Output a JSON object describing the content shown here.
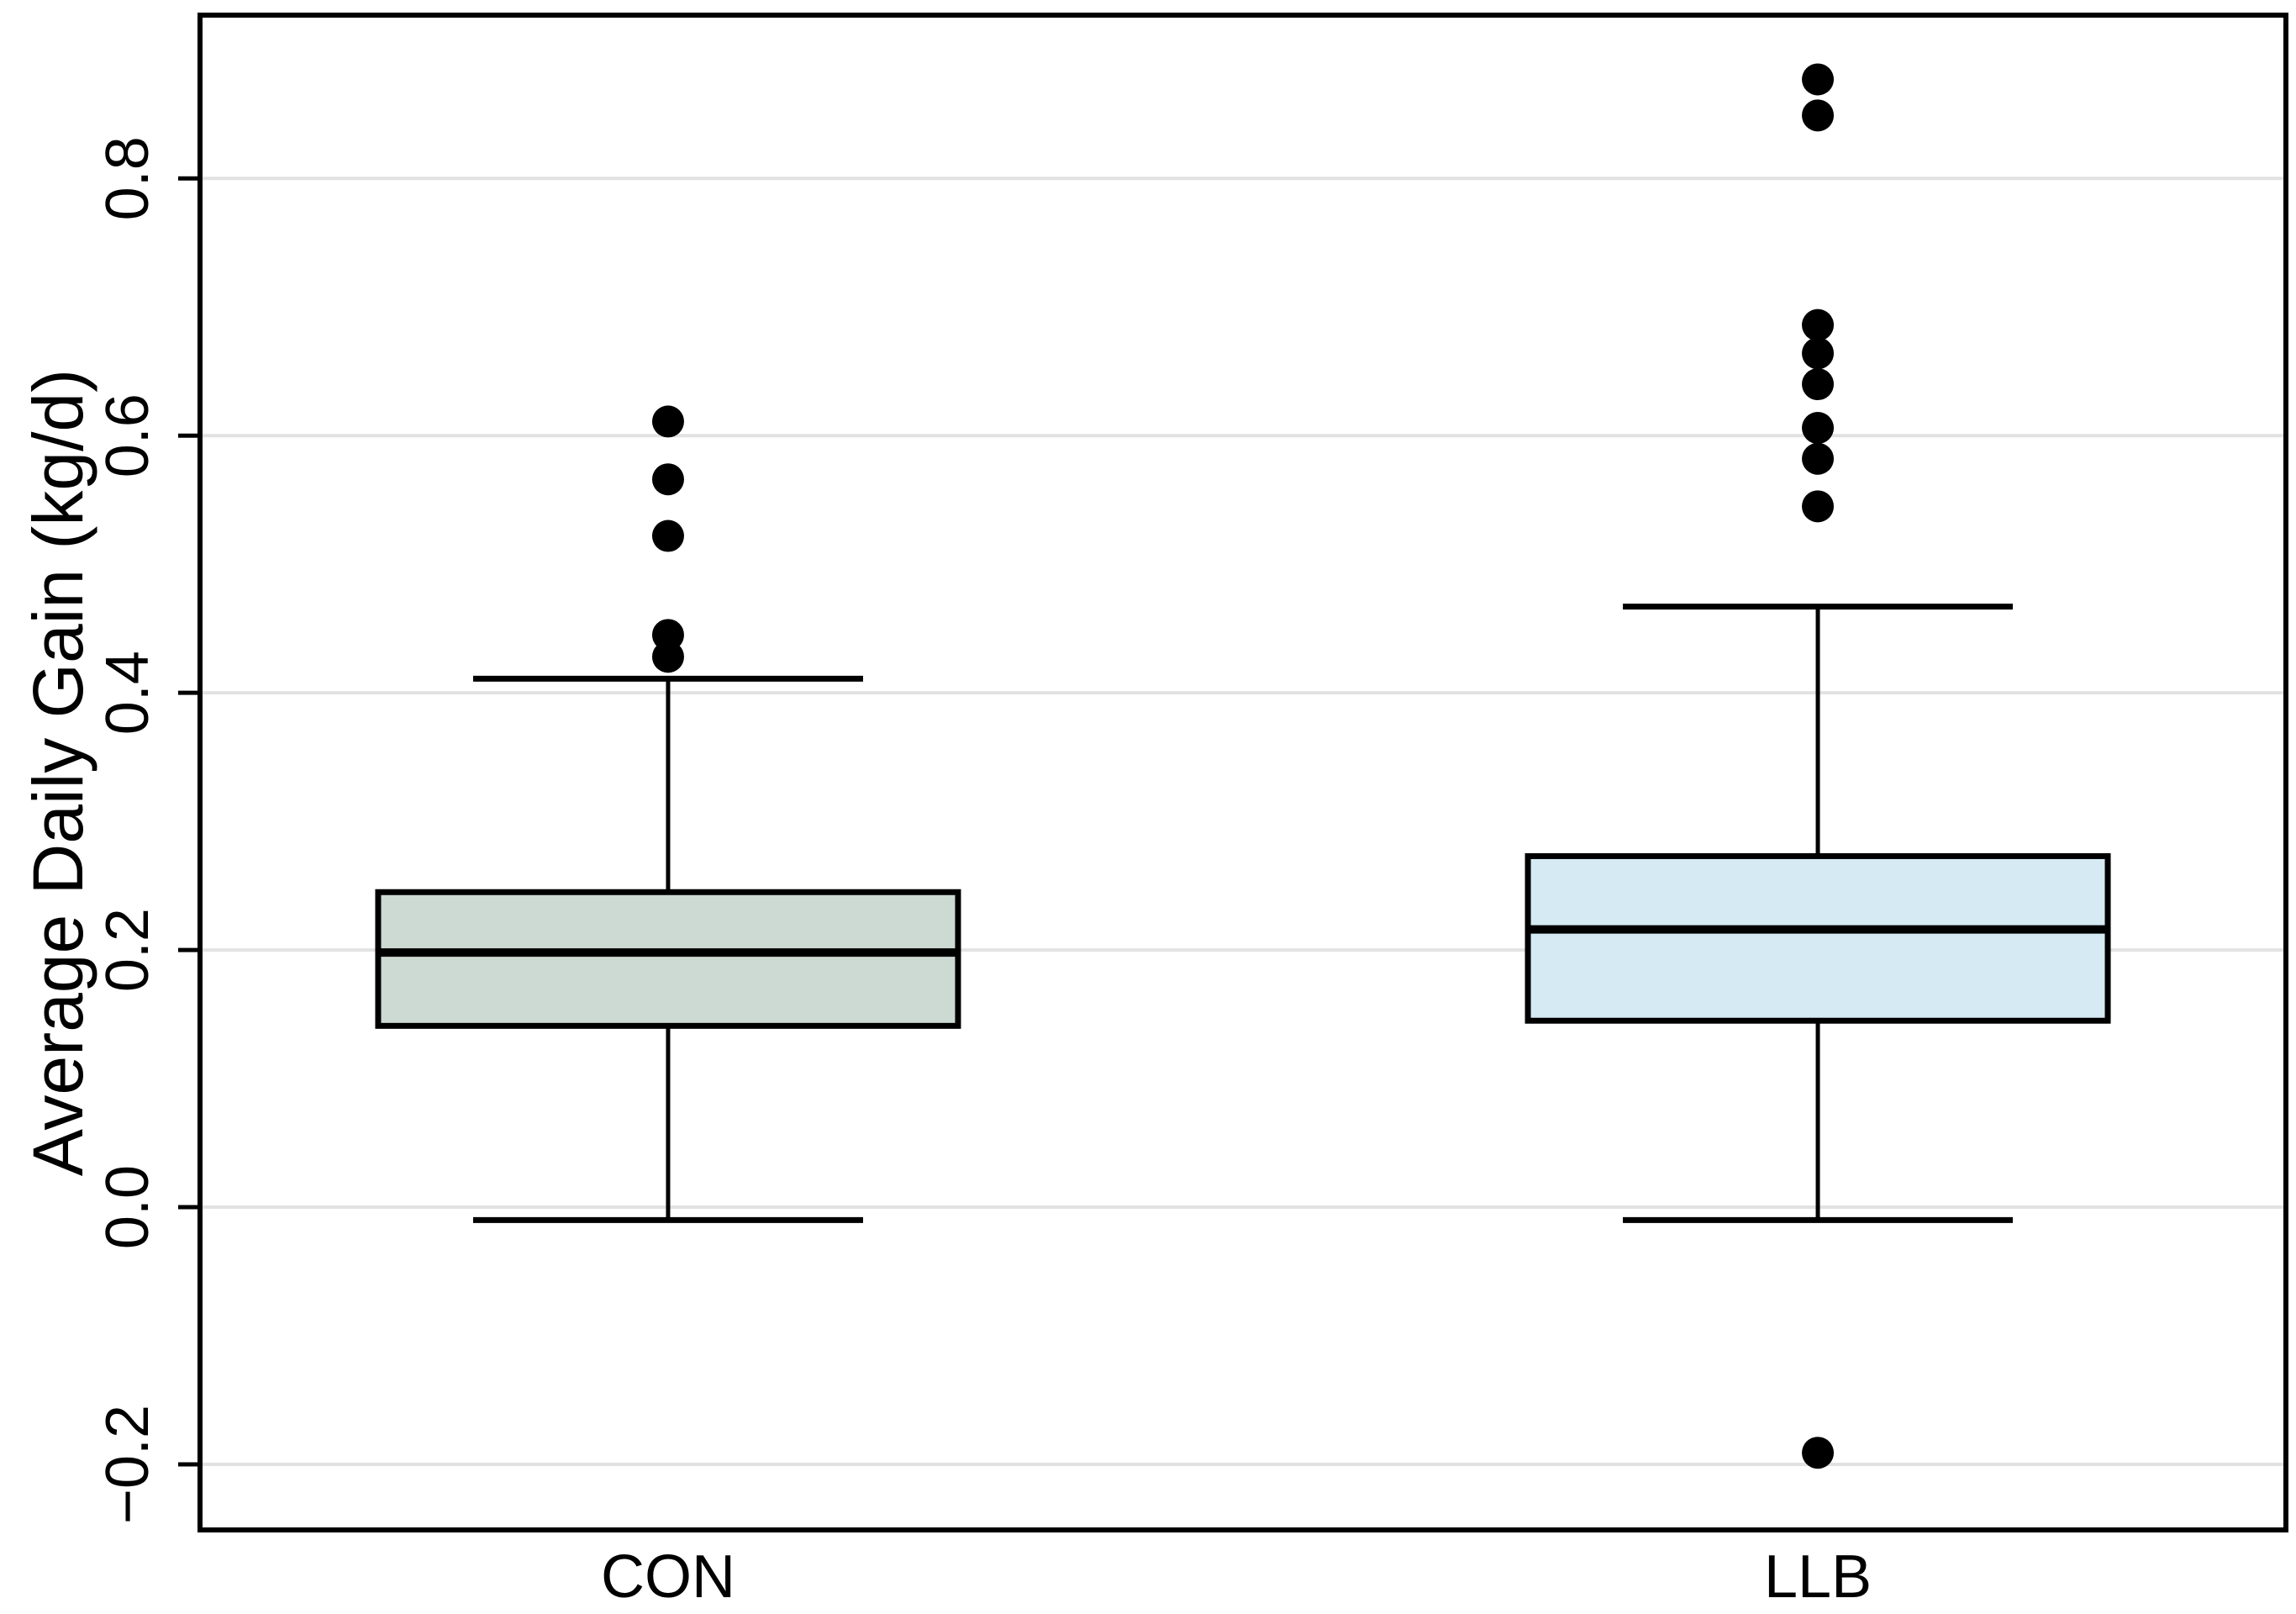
{
  "page": {
    "background": "#ffffff"
  },
  "chart_data": {
    "type": "boxplot",
    "title": "",
    "xlabel": "",
    "ylabel": "Average Daily Gain (kg/d)",
    "categories": [
      "CON",
      "LLB"
    ],
    "ylim": [
      -0.251,
      0.927
    ],
    "grid": true,
    "legend": "none",
    "yticks": [
      {
        "value": 0.8,
        "label": "0.8"
      },
      {
        "value": 0.6,
        "label": "0.6"
      },
      {
        "value": 0.4,
        "label": "0.4"
      },
      {
        "value": 0.2,
        "label": "0.2"
      },
      {
        "value": 0.0,
        "label": "0.0"
      },
      {
        "value": -0.2,
        "label": "−0.2"
      }
    ],
    "groups": [
      {
        "label": "CON",
        "fill": "#cdd9d3",
        "whisker_low": -0.01,
        "q1": 0.141,
        "median": 0.198,
        "q3": 0.245,
        "whisker_high": 0.411,
        "outliers": [
          0.428,
          0.445,
          0.522,
          0.566,
          0.611
        ]
      },
      {
        "label": "LLB",
        "fill": "#d5eaf2",
        "whisker_low": -0.01,
        "q1": 0.145,
        "median": 0.216,
        "q3": 0.273,
        "whisker_high": 0.467,
        "outliers": [
          -0.191,
          0.545,
          0.582,
          0.606,
          0.64,
          0.664,
          0.686,
          0.849,
          0.877
        ]
      }
    ],
    "colors": {
      "stroke": "#000000",
      "grid": "#e2e2e2",
      "background": "#ffffff",
      "outlier": "#000000"
    }
  }
}
